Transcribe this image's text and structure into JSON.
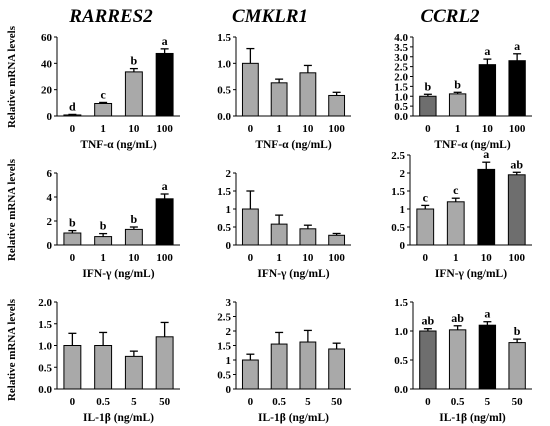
{
  "genes": [
    "RARRES2",
    "CMKLR1",
    "CCRL2"
  ],
  "ylabel": "Relative mRNA levels",
  "colors": {
    "gray": "#a9a9a9",
    "dark": "#6e6e6e",
    "black": "#000000"
  },
  "chart_data": [
    {
      "type": "bar",
      "panel": "RARRES2 / TNF-a",
      "xlabel": "TNF-α (ng/mL)",
      "categories": [
        "0",
        "1",
        "10",
        "100"
      ],
      "values": [
        0.8,
        9.5,
        33.5,
        47.5
      ],
      "errors": [
        0.4,
        0.8,
        2.5,
        3.5
      ],
      "ylim": [
        0,
        60
      ],
      "yticks": [
        "0",
        "20",
        "40",
        "60"
      ],
      "letters": [
        "d",
        "c",
        "b",
        "a"
      ],
      "fills": [
        "gray",
        "gray",
        "gray",
        "black"
      ]
    },
    {
      "type": "bar",
      "panel": "CMKLR1 / TNF-a",
      "xlabel": "TNF-α (ng/mL)",
      "categories": [
        "0",
        "1",
        "10",
        "100"
      ],
      "values": [
        1.0,
        0.63,
        0.82,
        0.39
      ],
      "errors": [
        0.28,
        0.07,
        0.14,
        0.06
      ],
      "ylim": [
        0,
        1.5
      ],
      "yticks": [
        "0.0",
        "0.5",
        "1.0",
        "1.5"
      ],
      "letters": [
        "",
        "",
        "",
        ""
      ],
      "fills": [
        "gray",
        "gray",
        "gray",
        "gray"
      ]
    },
    {
      "type": "bar",
      "panel": "CCRL2 / TNF-a",
      "xlabel": "TNF-α (ng/mL)",
      "categories": [
        "0",
        "1",
        "10",
        "100"
      ],
      "values": [
        1.0,
        1.12,
        2.6,
        2.8
      ],
      "errors": [
        0.1,
        0.08,
        0.28,
        0.35
      ],
      "ylim": [
        0,
        4
      ],
      "yticks": [
        "0.0",
        "0.5",
        "1.0",
        "1.5",
        "2.0",
        "2.5",
        "3.0",
        "3.5",
        "4.0"
      ],
      "letters": [
        "b",
        "b",
        "a",
        "a"
      ],
      "fills": [
        "dark",
        "gray",
        "black",
        "black"
      ]
    },
    {
      "type": "bar",
      "panel": "RARRES2 / IFN-g",
      "xlabel": "IFN-γ (ng/mL)",
      "categories": [
        "0",
        "1",
        "10",
        "100"
      ],
      "values": [
        1.0,
        0.7,
        1.3,
        3.85
      ],
      "errors": [
        0.2,
        0.25,
        0.2,
        0.4
      ],
      "ylim": [
        0,
        6
      ],
      "yticks": [
        "0",
        "2",
        "4",
        "6"
      ],
      "letters": [
        "b",
        "b",
        "b",
        "a"
      ],
      "fills": [
        "gray",
        "gray",
        "gray",
        "black"
      ]
    },
    {
      "type": "bar",
      "panel": "CMKLR1 / IFN-g",
      "xlabel": "IFN-γ (ng/mL)",
      "categories": [
        "0",
        "1",
        "10",
        "100"
      ],
      "values": [
        1.0,
        0.58,
        0.45,
        0.27
      ],
      "errors": [
        0.5,
        0.25,
        0.1,
        0.05
      ],
      "ylim": [
        0,
        2
      ],
      "yticks": [
        "0",
        "0.5",
        "1",
        "1.5",
        "2"
      ],
      "letters": [
        "",
        "",
        "",
        ""
      ],
      "fills": [
        "gray",
        "gray",
        "gray",
        "gray"
      ]
    },
    {
      "type": "bar",
      "panel": "CCRL2 / IFN-g",
      "xlabel": "IFN-γ (ng/mL)",
      "categories": [
        "0",
        "1",
        "10",
        "100"
      ],
      "values": [
        1.0,
        1.2,
        2.1,
        1.95
      ],
      "errors": [
        0.1,
        0.1,
        0.2,
        0.07
      ],
      "ylim": [
        0,
        2.5
      ],
      "yticks": [
        "0",
        "0.5",
        "1",
        "1.5",
        "2",
        "2.5"
      ],
      "letters": [
        "c",
        "c",
        "a",
        "ab"
      ],
      "fills": [
        "gray",
        "gray",
        "black",
        "dark"
      ]
    },
    {
      "type": "bar",
      "panel": "RARRES2 / IL-1b",
      "xlabel": "IL-1β (ng/mL)",
      "categories": [
        "0",
        "0.5",
        "5",
        "50"
      ],
      "values": [
        1.0,
        1.0,
        0.75,
        1.2
      ],
      "errors": [
        0.28,
        0.3,
        0.12,
        0.33
      ],
      "ylim": [
        0,
        2
      ],
      "yticks": [
        "0.0",
        "0.5",
        "1.0",
        "1.5",
        "2.0"
      ],
      "letters": [
        "",
        "",
        "",
        ""
      ],
      "fills": [
        "gray",
        "gray",
        "gray",
        "gray"
      ]
    },
    {
      "type": "bar",
      "panel": "CMKLR1 / IL-1b",
      "xlabel": "IL-1β (ng/mL)",
      "categories": [
        "0",
        "0.5",
        "5",
        "50"
      ],
      "values": [
        1.0,
        1.55,
        1.62,
        1.38
      ],
      "errors": [
        0.2,
        0.4,
        0.4,
        0.2
      ],
      "ylim": [
        0,
        3
      ],
      "yticks": [
        "0",
        "0.5",
        "1",
        "1.5",
        "2",
        "2.5",
        "3"
      ],
      "letters": [
        "",
        "",
        "",
        ""
      ],
      "fills": [
        "gray",
        "gray",
        "gray",
        "gray"
      ]
    },
    {
      "type": "bar",
      "panel": "CCRL2 / IL-1b",
      "xlabel": "IL-1β (ng/ml)",
      "categories": [
        "0",
        "0.5",
        "5",
        "50"
      ],
      "values": [
        1.0,
        1.02,
        1.1,
        0.8
      ],
      "errors": [
        0.04,
        0.07,
        0.06,
        0.06
      ],
      "ylim": [
        0,
        1.5
      ],
      "yticks": [
        "0.0",
        "0.5",
        "1.0",
        "1.5"
      ],
      "letters": [
        "ab",
        "ab",
        "a",
        "b"
      ],
      "fills": [
        "dark",
        "gray",
        "black",
        "gray"
      ]
    }
  ]
}
